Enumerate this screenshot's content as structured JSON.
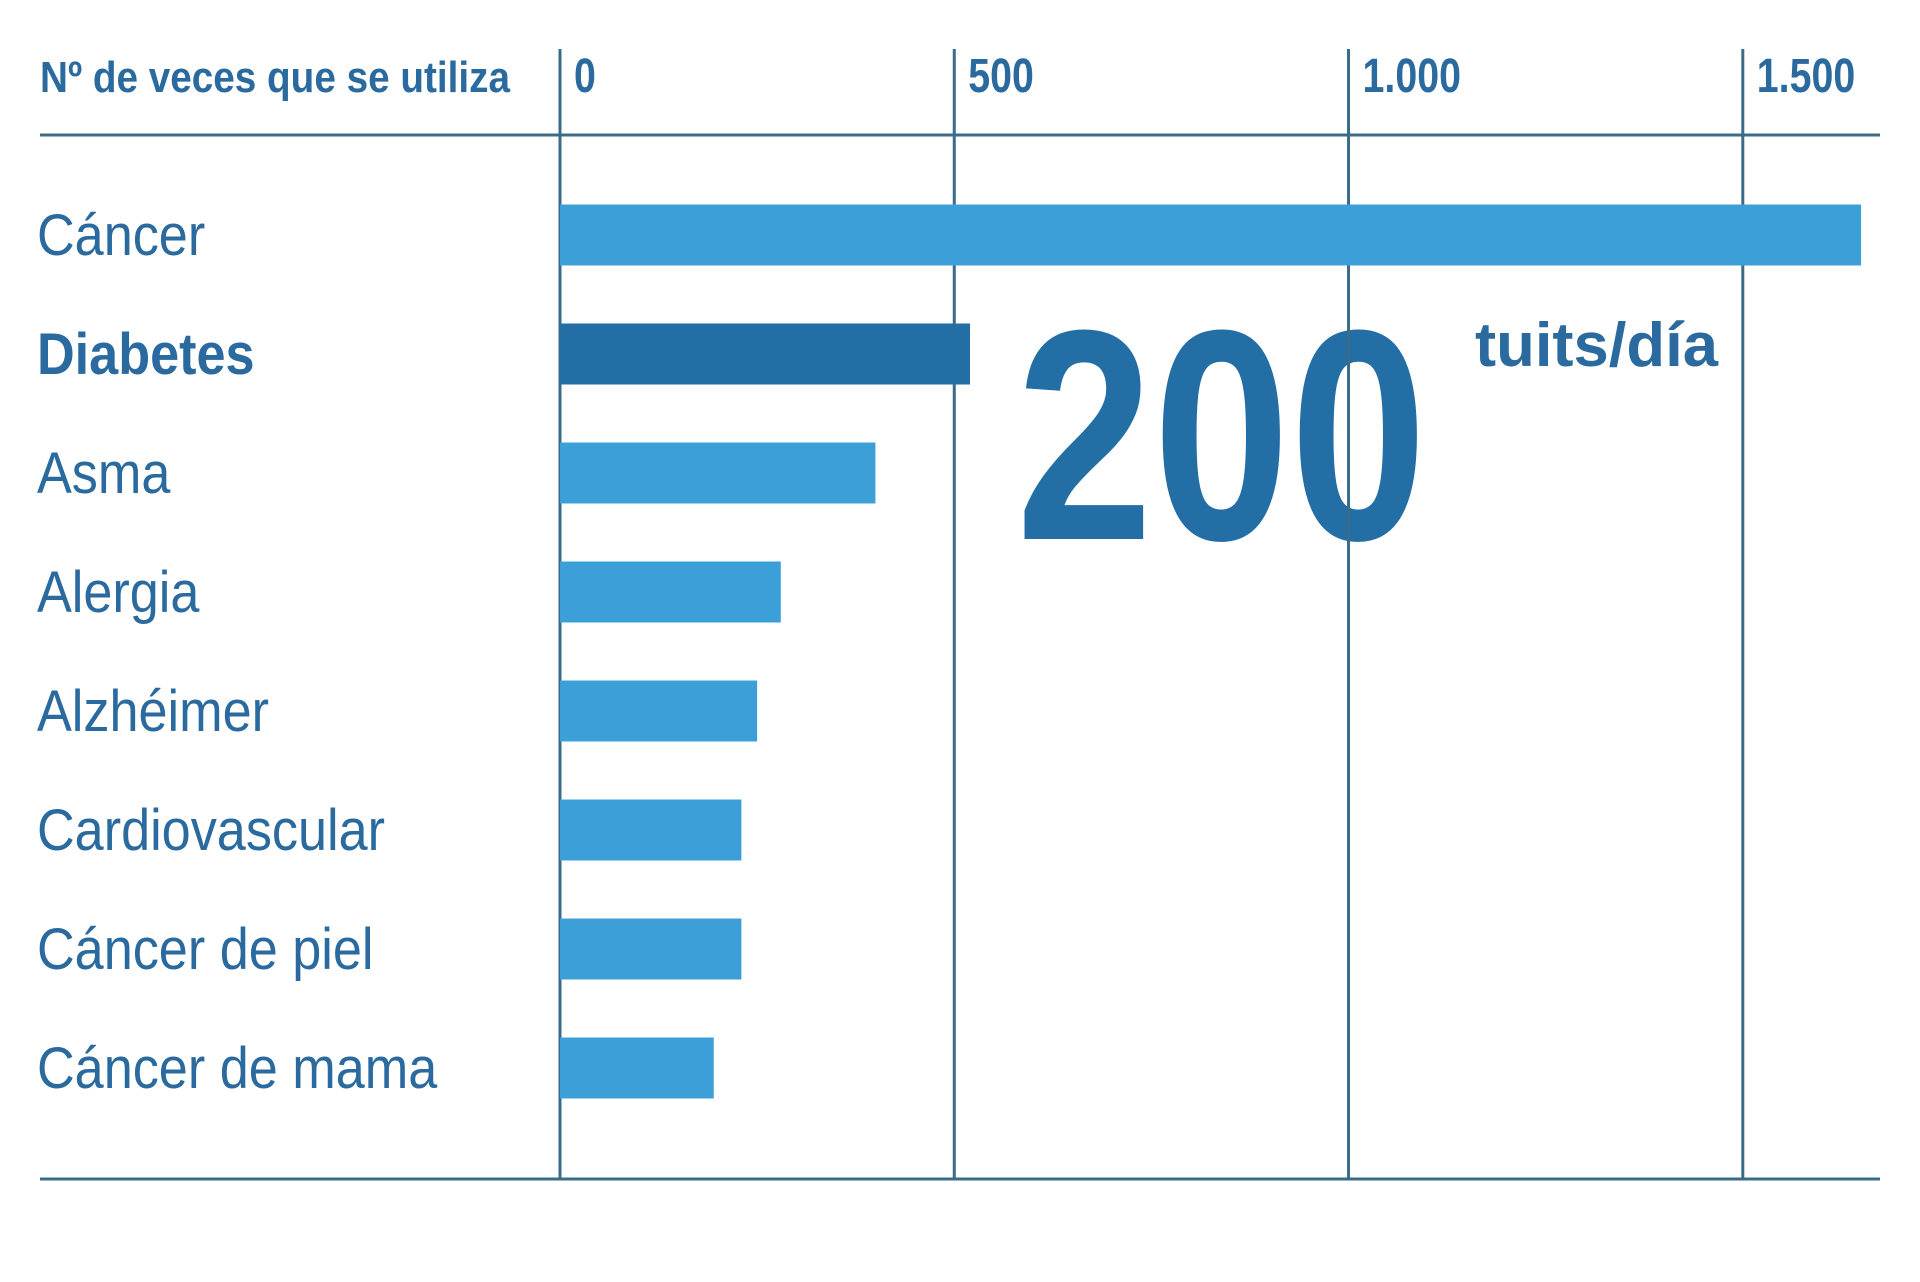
{
  "chart_data": {
    "type": "bar",
    "x_label": "Nº de veces que se utiliza",
    "categories": [
      "Cáncer",
      "Diabetes",
      "Asma",
      "Alergia",
      "Alzhéimer",
      "Cardiovascular",
      "Cáncer de piel",
      "Cáncer de mama"
    ],
    "values": [
      1650,
      520,
      400,
      280,
      250,
      230,
      230,
      195
    ],
    "color": "#3d9fd8",
    "colors": [
      "#3d9fd8",
      "#226ea5",
      "#3d9fd8",
      "#3d9fd8",
      "#3d9fd8",
      "#3d9fd8",
      "#3d9fd8",
      "#3d9fd8"
    ],
    "xlim": [
      0,
      1674
    ],
    "xticks": [
      0,
      500,
      {
        "value": 1000,
        "label": "1.000"
      },
      {
        "value": 1500,
        "label": "1.500"
      }
    ],
    "grid": true,
    "annotation": {
      "value": "200",
      "unit": "tuits/día"
    }
  }
}
